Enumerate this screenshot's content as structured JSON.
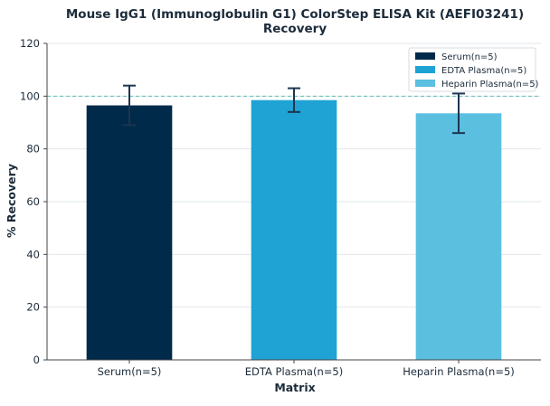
{
  "chart_data": {
    "type": "bar",
    "title": "Mouse IgG1 (Immunoglobulin G1) ColorStep ELISA Kit (AEFI03241)",
    "subtitle": "Recovery",
    "xlabel": "Matrix",
    "ylabel": "% Recovery",
    "ylim": [
      0,
      120
    ],
    "yticks": [
      0,
      20,
      40,
      60,
      80,
      100,
      120
    ],
    "reference_line": 100,
    "grid": true,
    "legend_position": "top-right",
    "categories": [
      "Serum(n=5)",
      "EDTA Plasma(n=5)",
      "Heparin Plasma(n=5)"
    ],
    "values": [
      96.5,
      98.5,
      93.5
    ],
    "errors": [
      7.5,
      4.5,
      7.5
    ],
    "colors": [
      "#002a4a",
      "#1fa3d4",
      "#5bbfe0"
    ],
    "legend": [
      "Serum(n=5)",
      "EDTA Plasma(n=5)",
      "Heparin Plasma(n=5)"
    ]
  }
}
